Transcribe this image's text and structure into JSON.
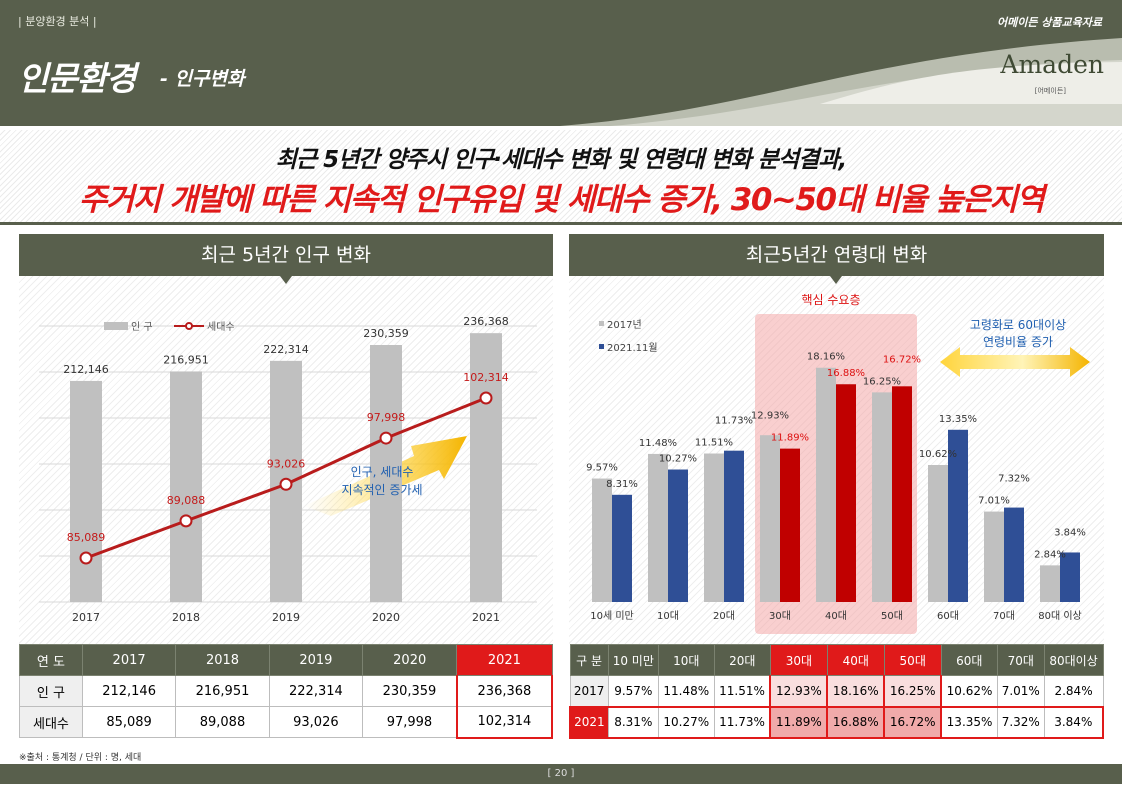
{
  "header": {
    "section": "| 분양환경 분석 |",
    "title": "인문환경",
    "subtitle": "- 인구변화",
    "edu_label": "어메이든 상품교육자료",
    "logo": "Amaden",
    "logo_sub": "[어메이든]"
  },
  "headline": {
    "line1": "최근 5년간 양주시 인구·세대수 변화 및 연령대 변화 분석결과,",
    "line2": "주거지 개발에 따른 지속적 인구유입 및 세대수 증가, 30~50대 비율 높은지역"
  },
  "left_panel": {
    "title": "최근 5년간 인구 변화",
    "annotation": [
      "인구, 세대수",
      "지속적인 증가세"
    ]
  },
  "right_panel": {
    "title": "최근5년간 연령대 변화",
    "core_label": "핵심 수요층",
    "note": [
      "고령화로 60대이상",
      "연령비율 증가"
    ]
  },
  "chart_data": [
    {
      "type": "bar",
      "categories": [
        "2017",
        "2018",
        "2019",
        "2020",
        "2021"
      ],
      "series": [
        {
          "name": "인 구",
          "kind": "bar",
          "color": "#c0c0c0",
          "values": [
            212146,
            216951,
            222314,
            230359,
            236368
          ],
          "labels": [
            "212,146",
            "216,951",
            "222,314",
            "230,359",
            "236,368"
          ]
        },
        {
          "name": "세대수",
          "kind": "line",
          "color": "#b81c1c",
          "values": [
            85089,
            89088,
            93026,
            97998,
            102314
          ],
          "labels": [
            "85,089",
            "89,088",
            "93,026",
            "97,998",
            "102,314"
          ]
        }
      ],
      "legend": "top-left",
      "grid": true
    },
    {
      "type": "bar",
      "categories": [
        "10세 미만",
        "10대",
        "20대",
        "30대",
        "40대",
        "50대",
        "60대",
        "70대",
        "80대 이상"
      ],
      "series": [
        {
          "name": "2017년",
          "color": "#c0c0c0",
          "values": [
            9.57,
            11.48,
            11.51,
            12.93,
            18.16,
            16.25,
            10.62,
            7.01,
            2.84
          ],
          "labels": [
            "9.57%",
            "11.48%",
            "11.51%",
            "12.93%",
            "18.16%",
            "16.25%",
            "10.62%",
            "7.01%",
            "2.84%"
          ]
        },
        {
          "name": "2021.11월",
          "color": "#2f4f96",
          "highlight_color": "#c00000",
          "values": [
            8.31,
            10.27,
            11.73,
            11.89,
            16.88,
            16.72,
            13.35,
            7.32,
            3.84
          ],
          "labels": [
            "8.31%",
            "10.27%",
            "11.73%",
            "11.89%",
            "16.88%",
            "16.72%",
            "13.35%",
            "7.32%",
            "3.84%"
          ]
        }
      ],
      "highlight_categories": [
        "30대",
        "40대",
        "50대"
      ],
      "legend": "top-left"
    }
  ],
  "table_left": {
    "headers": [
      "연 도",
      "2017",
      "2018",
      "2019",
      "2020",
      "2021"
    ],
    "rows": [
      [
        "인 구",
        "212,146",
        "216,951",
        "222,314",
        "230,359",
        "236,368"
      ],
      [
        "세대수",
        "85,089",
        "89,088",
        "93,026",
        "97,998",
        "102,314"
      ]
    ]
  },
  "table_right": {
    "headers": [
      "구 분",
      "10 미만",
      "10대",
      "20대",
      "30대",
      "40대",
      "50대",
      "60대",
      "70대",
      "80대이상"
    ],
    "rows": [
      [
        "2017",
        "9.57%",
        "11.48%",
        "11.51%",
        "12.93%",
        "18.16%",
        "16.25%",
        "10.62%",
        "7.01%",
        "2.84%"
      ],
      [
        "2021",
        "8.31%",
        "10.27%",
        "11.73%",
        "11.89%",
        "16.88%",
        "16.72%",
        "13.35%",
        "7.32%",
        "3.84%"
      ]
    ]
  },
  "source": "※출처 : 통계청 / 단위 : 명, 세대",
  "page": "[ 20 ]",
  "colors": {
    "primary": "#585f4c",
    "accent_red": "#e01a1a",
    "navy": "#2f4f96"
  }
}
